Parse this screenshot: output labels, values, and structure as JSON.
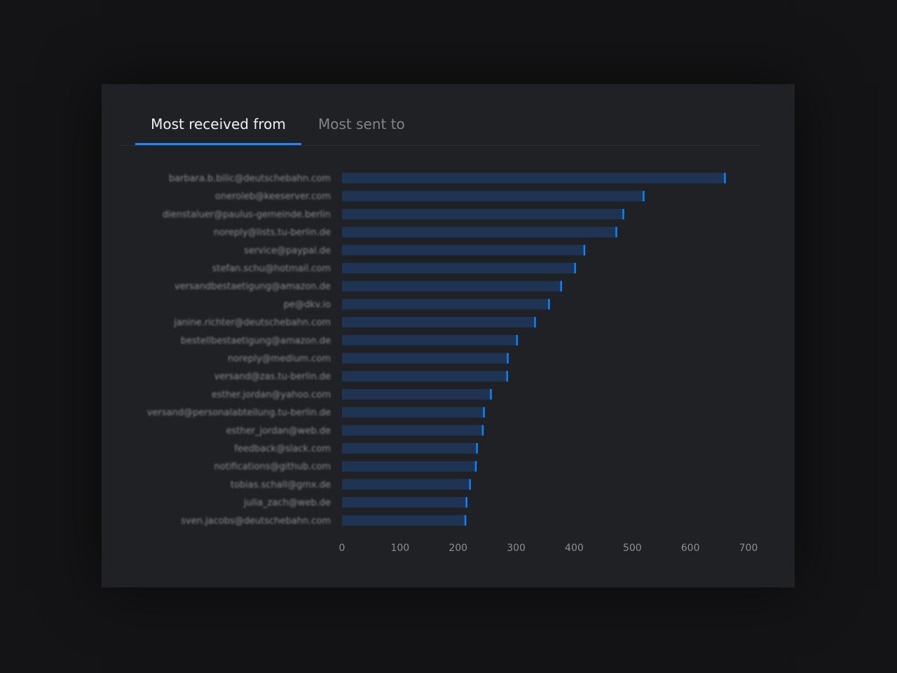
{
  "tabs": [
    {
      "label": "Most received from",
      "active": true
    },
    {
      "label": "Most sent to",
      "active": false
    }
  ],
  "colors": {
    "bar": "#1f3452",
    "bar_cap": "#0a84ff",
    "tab_active": "#1e88ff"
  },
  "chart_data": {
    "type": "bar",
    "orientation": "horizontal",
    "categories": [
      "barbara.b.bilic@deutschebahn.com",
      "oneroleb@keeserver.com",
      "dienstaluer@paulus-gemeinde.berlin",
      "noreply@lists.tu-berlin.de",
      "service@paypal.de",
      "stefan.schu@hotmail.com",
      "versandbestaetigung@amazon.de",
      "pe@dkv.io",
      "janine.richter@deutschebahn.com",
      "bestellbestaetigung@amazon.de",
      "noreply@medium.com",
      "versand@zas.tu-berlin.de",
      "esther.jordan@yahoo.com",
      "versand@personalabteilung.tu-berlin.de",
      "esther_jordan@web.de",
      "feedback@slack.com",
      "notifications@github.com",
      "tobias.schall@gmx.de",
      "julia_zach@web.de",
      "sven.jacobs@deutschebahn.com"
    ],
    "values": [
      661,
      521,
      486,
      474,
      419,
      403,
      379,
      358,
      334,
      303,
      287,
      286,
      258,
      246,
      244,
      234,
      232,
      222,
      216,
      214
    ],
    "xlim": [
      0,
      700
    ],
    "xticks": [
      0,
      100,
      200,
      300,
      400,
      500,
      600,
      700
    ],
    "grid": false
  }
}
